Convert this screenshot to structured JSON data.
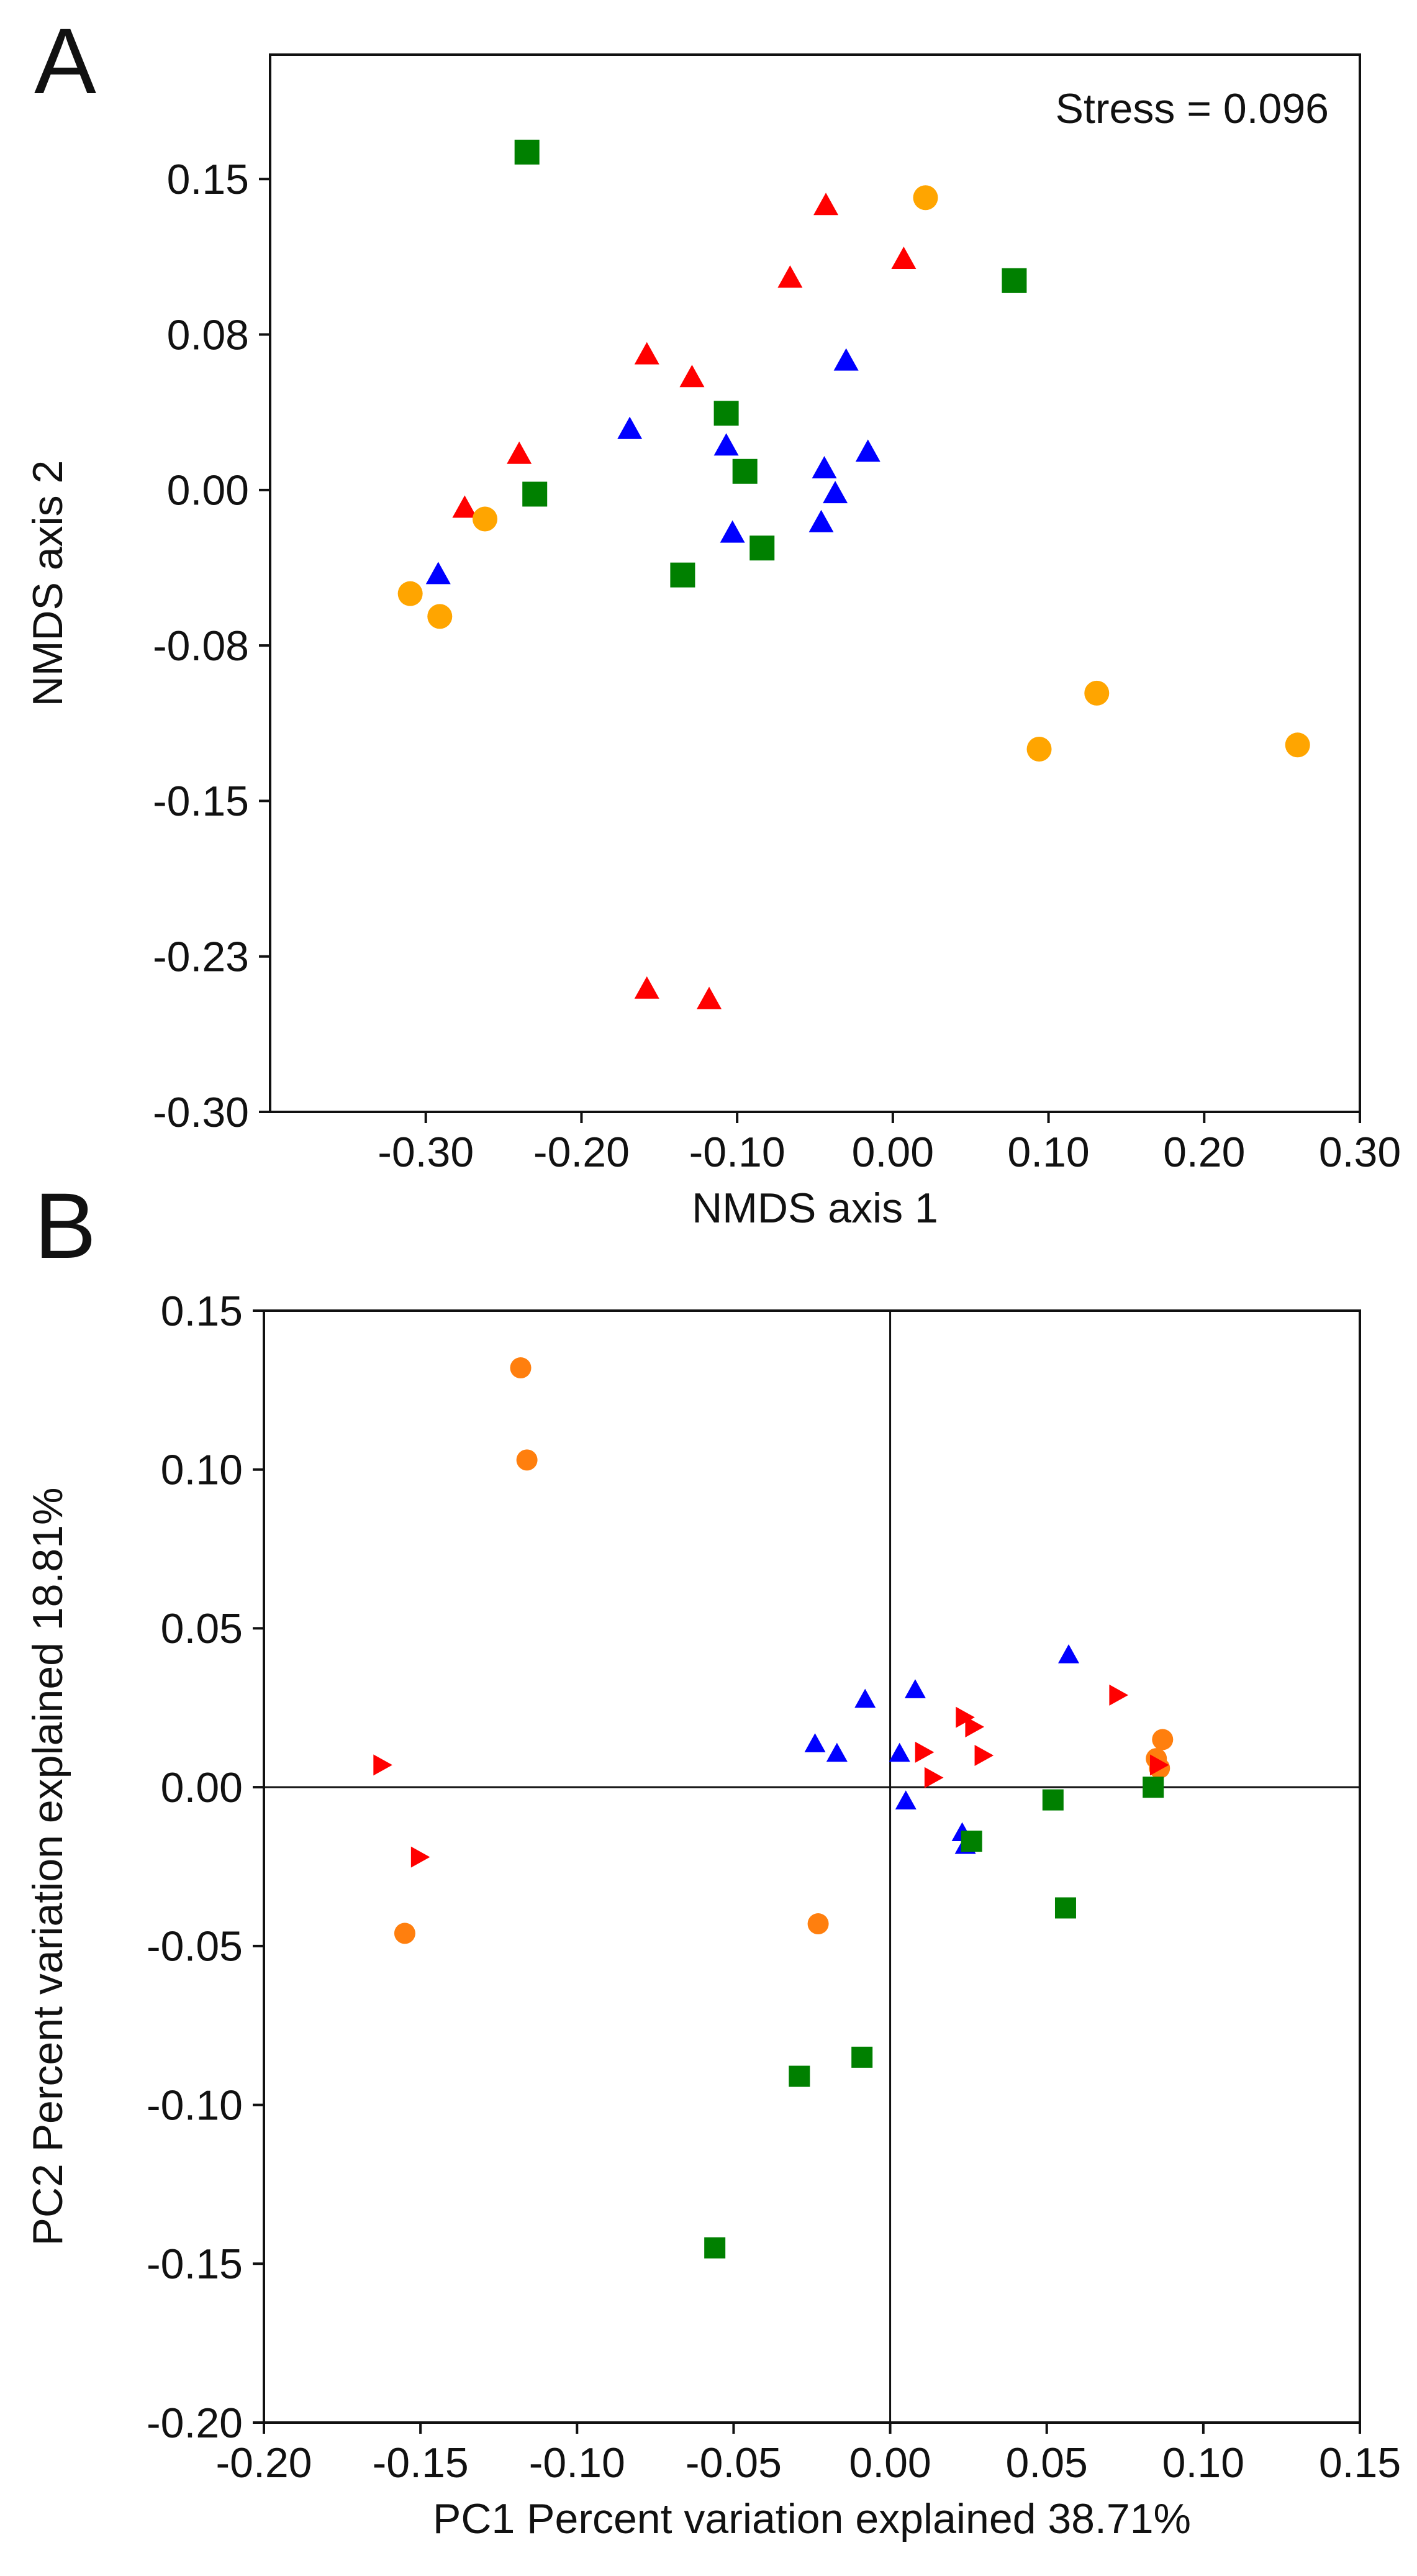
{
  "panels": {
    "a": {
      "label": "A"
    },
    "b": {
      "label": "B"
    }
  },
  "chart_data": [
    {
      "id": "panelA",
      "type": "scatter",
      "title": "",
      "xlabel": "NMDS axis 1",
      "ylabel": "NMDS axis 2",
      "annotation": "Stress = 0.096",
      "annotation_position": "top-right",
      "xlim": [
        -0.4,
        0.3
      ],
      "ylim": [
        -0.3,
        0.21
      ],
      "xticks": [
        -0.3,
        -0.2,
        -0.1,
        0.0,
        0.1,
        0.2,
        0.3
      ],
      "xtick_labels": [
        "-0.30",
        "-0.20",
        "-0.10",
        "0.00",
        "0.10",
        "0.20",
        "0.30"
      ],
      "yticks": [
        0.15,
        0.075,
        0.0,
        -0.075,
        -0.15,
        -0.225,
        -0.3
      ],
      "ytick_labels": [
        "0.15",
        "0.08",
        "0.00",
        "-0.08",
        "-0.15",
        "-0.23",
        "-0.30"
      ],
      "grid": false,
      "legend": "none",
      "series": [
        {
          "marker": "square",
          "color": "#008000",
          "points": [
            [
              -0.235,
              0.163
            ],
            [
              0.078,
              0.101
            ],
            [
              -0.107,
              0.037
            ],
            [
              -0.095,
              0.009
            ],
            [
              -0.23,
              -0.002
            ],
            [
              -0.084,
              -0.028
            ],
            [
              -0.135,
              -0.041
            ]
          ]
        },
        {
          "marker": "triangle-up",
          "color": "#ff0000",
          "points": [
            [
              -0.043,
              0.138
            ],
            [
              0.007,
              0.112
            ],
            [
              -0.066,
              0.103
            ],
            [
              -0.158,
              0.066
            ],
            [
              -0.129,
              0.055
            ],
            [
              -0.24,
              0.018
            ],
            [
              -0.275,
              -0.008
            ],
            [
              -0.158,
              -0.24
            ],
            [
              -0.118,
              -0.245
            ]
          ]
        },
        {
          "marker": "triangle-up",
          "color": "#0000ff",
          "points": [
            [
              -0.03,
              0.063
            ],
            [
              -0.169,
              0.03
            ],
            [
              -0.107,
              0.022
            ],
            [
              -0.016,
              0.019
            ],
            [
              -0.044,
              0.011
            ],
            [
              -0.037,
              -0.001
            ],
            [
              -0.046,
              -0.015
            ],
            [
              -0.103,
              -0.02
            ],
            [
              -0.292,
              -0.04
            ]
          ]
        },
        {
          "marker": "circle",
          "color": "#ffa500",
          "points": [
            [
              0.021,
              0.141
            ],
            [
              -0.262,
              -0.014
            ],
            [
              -0.31,
              -0.05
            ],
            [
              -0.291,
              -0.061
            ],
            [
              0.131,
              -0.098
            ],
            [
              0.094,
              -0.125
            ],
            [
              0.26,
              -0.123
            ]
          ]
        }
      ]
    },
    {
      "id": "panelB",
      "type": "scatter",
      "title": "",
      "xlabel": "PC1 Percent variation explained 38.71%",
      "ylabel": "PC2 Percent variation explained 18.81%",
      "xlim": [
        -0.2,
        0.15
      ],
      "ylim": [
        -0.2,
        0.15
      ],
      "xticks": [
        -0.2,
        -0.15,
        -0.1,
        -0.05,
        0.0,
        0.05,
        0.1,
        0.15
      ],
      "xtick_labels": [
        "-0.20",
        "-0.15",
        "-0.10",
        "-0.05",
        "0.00",
        "0.05",
        "0.10",
        "0.15"
      ],
      "yticks": [
        0.15,
        0.1,
        0.05,
        0.0,
        -0.05,
        -0.1,
        -0.15,
        -0.2
      ],
      "ytick_labels": [
        "0.15",
        "0.10",
        "0.05",
        "0.00",
        "-0.05",
        "-0.10",
        "-0.15",
        "-0.20"
      ],
      "reference_lines": {
        "x": 0,
        "y": 0
      },
      "grid": false,
      "legend": "none",
      "series": [
        {
          "marker": "circle",
          "color": "#ff7f0e",
          "points": [
            [
              -0.118,
              0.132
            ],
            [
              -0.116,
              0.103
            ],
            [
              -0.023,
              -0.043
            ],
            [
              -0.155,
              -0.046
            ],
            [
              0.087,
              0.015
            ],
            [
              0.085,
              0.009
            ],
            [
              0.086,
              0.006
            ]
          ]
        },
        {
          "marker": "triangle-right",
          "color": "#ff0000",
          "points": [
            [
              -0.162,
              0.007
            ],
            [
              -0.15,
              -0.022
            ],
            [
              0.011,
              0.011
            ],
            [
              0.014,
              0.003
            ],
            [
              0.024,
              0.022
            ],
            [
              0.027,
              0.019
            ],
            [
              0.03,
              0.01
            ],
            [
              0.073,
              0.029
            ],
            [
              0.086,
              0.007
            ]
          ]
        },
        {
          "marker": "triangle-up",
          "color": "#0000ff",
          "points": [
            [
              -0.024,
              0.014
            ],
            [
              -0.017,
              0.011
            ],
            [
              -0.008,
              0.028
            ],
            [
              0.003,
              0.011
            ],
            [
              0.005,
              -0.004
            ],
            [
              0.008,
              0.031
            ],
            [
              0.023,
              -0.014
            ],
            [
              0.024,
              -0.018
            ],
            [
              0.057,
              0.042
            ]
          ]
        },
        {
          "marker": "square",
          "color": "#008000",
          "points": [
            [
              0.026,
              -0.017
            ],
            [
              0.052,
              -0.004
            ],
            [
              0.056,
              -0.038
            ],
            [
              0.084,
              0.0
            ],
            [
              -0.009,
              -0.085
            ],
            [
              -0.029,
              -0.091
            ],
            [
              -0.056,
              -0.145
            ]
          ]
        }
      ]
    }
  ]
}
